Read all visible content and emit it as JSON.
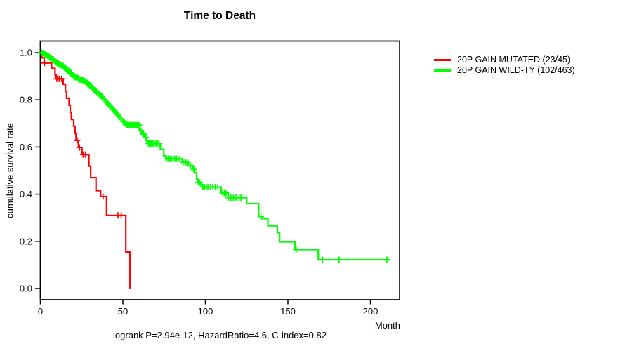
{
  "title": "Time to Death",
  "axes": {
    "y_label": "cumulative survival rate",
    "x_label": "Month",
    "y_tick_labels": [
      "1.0",
      "0.8",
      "0.6",
      "0.4",
      "0.2",
      "0.0"
    ],
    "x_tick_labels": [
      "0",
      "50",
      "100",
      "150",
      "200"
    ]
  },
  "legend": {
    "items": [
      {
        "label": "20P GAIN MUTATED (23/45)",
        "color": "#ff0000"
      },
      {
        "label": "20P GAIN WILD-TY (102/463)",
        "color": "#00ff00"
      }
    ]
  },
  "footer": {
    "text": "logrank P=2.94e-12, HazardRatio=4.6, C-index=0.82"
  },
  "chart_data": {
    "type": "line",
    "subtype": "kaplan-meier-step",
    "title": "Time to Death",
    "xlabel": "Month",
    "ylabel": "cumulative survival rate",
    "xlim": [
      0,
      218
    ],
    "ylim": [
      0,
      1.0
    ],
    "x_ticks": [
      0,
      50,
      100,
      150,
      200
    ],
    "y_ticks": [
      0.0,
      0.2,
      0.4,
      0.6,
      0.8,
      1.0
    ],
    "grid": false,
    "legend_position": "right-outside",
    "annotation": "logrank P=2.94e-12, HazardRatio=4.6, C-index=0.82",
    "series": [
      {
        "name": "20P GAIN MUTATED (23/45)",
        "color": "#ff0000",
        "points": [
          [
            0,
            1.0
          ],
          [
            0.9,
            0.978
          ],
          [
            2.3,
            0.956
          ],
          [
            6.8,
            0.933
          ],
          [
            8.9,
            0.906
          ],
          [
            9.6,
            0.889
          ],
          [
            13.8,
            0.866
          ],
          [
            15.2,
            0.836
          ],
          [
            15.9,
            0.807
          ],
          [
            17.4,
            0.777
          ],
          [
            18.1,
            0.747
          ],
          [
            18.8,
            0.717
          ],
          [
            20.2,
            0.688
          ],
          [
            21.0,
            0.658
          ],
          [
            21.6,
            0.628
          ],
          [
            23.1,
            0.598
          ],
          [
            25.2,
            0.568
          ],
          [
            29.4,
            0.519
          ],
          [
            30.5,
            0.47
          ],
          [
            33.7,
            0.415
          ],
          [
            36.5,
            0.39
          ],
          [
            40.1,
            0.31
          ],
          [
            51.8,
            0.155
          ],
          [
            54.2,
            0.0
          ]
        ],
        "censor_months": [
          2.5,
          10,
          11.4,
          12.9,
          22.3,
          23.7,
          25.9,
          27.3,
          38,
          47,
          49
        ]
      },
      {
        "name": "20P GAIN WILD-TY (102/463)",
        "color": "#00ff00",
        "points": [
          [
            0,
            1.0
          ],
          [
            1,
            0.998
          ],
          [
            2,
            0.995
          ],
          [
            3,
            0.991
          ],
          [
            4,
            0.987
          ],
          [
            5,
            0.982
          ],
          [
            6,
            0.977
          ],
          [
            7,
            0.972
          ],
          [
            8,
            0.966
          ],
          [
            9,
            0.96
          ],
          [
            10,
            0.955
          ],
          [
            11,
            0.951
          ],
          [
            12,
            0.948
          ],
          [
            13,
            0.944
          ],
          [
            14,
            0.938
          ],
          [
            15,
            0.932
          ],
          [
            16,
            0.926
          ],
          [
            17,
            0.92
          ],
          [
            18,
            0.913
          ],
          [
            19,
            0.906
          ],
          [
            20,
            0.9
          ],
          [
            21,
            0.896
          ],
          [
            22,
            0.892
          ],
          [
            23,
            0.888
          ],
          [
            24,
            0.886
          ],
          [
            25,
            0.884
          ],
          [
            26,
            0.882
          ],
          [
            27,
            0.878
          ],
          [
            28,
            0.872
          ],
          [
            29,
            0.865
          ],
          [
            30,
            0.858
          ],
          [
            31,
            0.851
          ],
          [
            32,
            0.845
          ],
          [
            33,
            0.838
          ],
          [
            34,
            0.83
          ],
          [
            35,
            0.825
          ],
          [
            36,
            0.82
          ],
          [
            37,
            0.813
          ],
          [
            38,
            0.806
          ],
          [
            39,
            0.799
          ],
          [
            40,
            0.79
          ],
          [
            41,
            0.783
          ],
          [
            42,
            0.775
          ],
          [
            43,
            0.768
          ],
          [
            44,
            0.76
          ],
          [
            45,
            0.752
          ],
          [
            46,
            0.744
          ],
          [
            47,
            0.736
          ],
          [
            48,
            0.727
          ],
          [
            49,
            0.718
          ],
          [
            50,
            0.709
          ],
          [
            51,
            0.7
          ],
          [
            51.5,
            0.695
          ],
          [
            52,
            0.693
          ],
          [
            60,
            0.67
          ],
          [
            61.5,
            0.655
          ],
          [
            63,
            0.64
          ],
          [
            64.5,
            0.625
          ],
          [
            65,
            0.615
          ],
          [
            72.7,
            0.59
          ],
          [
            74.8,
            0.563
          ],
          [
            76,
            0.55
          ],
          [
            86,
            0.535
          ],
          [
            89.7,
            0.52
          ],
          [
            92.6,
            0.505
          ],
          [
            93.6,
            0.49
          ],
          [
            94.7,
            0.465
          ],
          [
            95.4,
            0.45
          ],
          [
            97.5,
            0.436
          ],
          [
            98.2,
            0.43
          ],
          [
            109.6,
            0.405
          ],
          [
            113.8,
            0.385
          ],
          [
            125,
            0.36
          ],
          [
            132.3,
            0.306
          ],
          [
            134.4,
            0.296
          ],
          [
            137.9,
            0.266
          ],
          [
            143.6,
            0.236
          ],
          [
            145,
            0.198
          ],
          [
            154.3,
            0.165
          ],
          [
            168.4,
            0.122
          ],
          [
            212,
            0.122
          ]
        ],
        "censor_months": [
          0.6,
          1.2,
          1.8,
          2.4,
          3,
          3.6,
          4.2,
          4.8,
          5.4,
          6,
          6.6,
          7.2,
          7.8,
          8.4,
          9,
          9.6,
          10.2,
          10.8,
          11.4,
          12,
          12.6,
          13.2,
          13.8,
          14.4,
          15,
          15.6,
          16.2,
          16.8,
          17.4,
          18,
          18.6,
          19.2,
          19.8,
          20.4,
          21,
          21.6,
          22.2,
          22.8,
          23.4,
          24,
          24.6,
          25.2,
          25.8,
          26.4,
          27,
          27.6,
          28.2,
          28.8,
          29.4,
          30,
          30.8,
          31.6,
          32.4,
          33.2,
          34,
          34.8,
          35.6,
          36.4,
          37.2,
          38,
          39,
          40,
          41,
          42,
          43,
          44,
          45,
          46,
          47,
          48,
          49,
          50,
          50.7,
          51.4,
          52.1,
          52.8,
          53.5,
          54.2,
          54.9,
          55.6,
          56.3,
          57,
          57.7,
          58.4,
          59.1,
          59.8,
          61,
          62.5,
          64,
          65.5,
          66.2,
          66.9,
          67.6,
          68.3,
          69,
          70,
          71,
          72,
          76.5,
          77.5,
          78.5,
          79.5,
          80.5,
          81.5,
          82.5,
          83.5,
          84.5,
          86.5,
          88,
          89,
          91,
          93,
          95.8,
          96.6,
          98.5,
          99.5,
          100.5,
          101.5,
          103,
          104.5,
          106,
          107.5,
          110.5,
          111.5,
          112.5,
          114,
          115.5,
          117,
          118.5,
          120.5,
          121.5,
          133.7,
          155,
          171,
          181,
          210
        ]
      }
    ]
  }
}
